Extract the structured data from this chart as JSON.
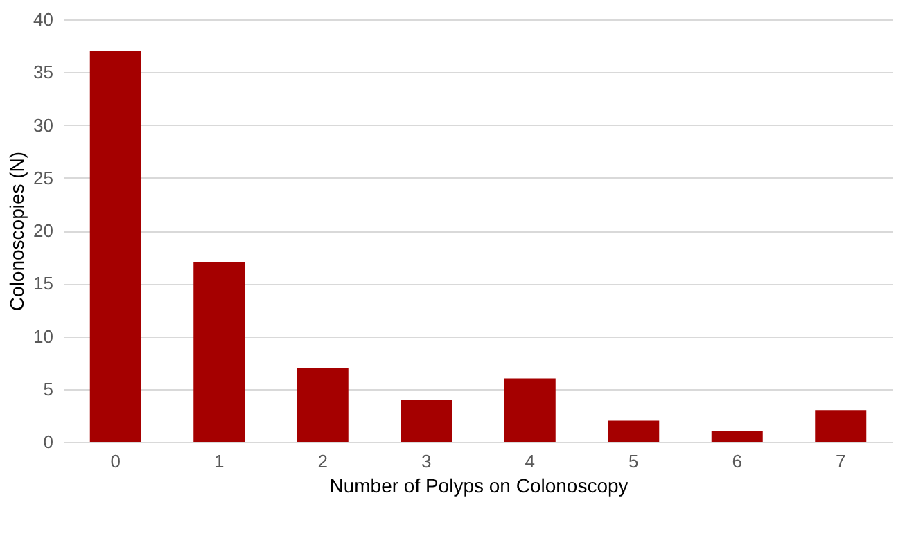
{
  "chart_data": {
    "type": "bar",
    "xlabel": "Number of Polyps on Colonoscopy",
    "ylabel": "Colonoscopies (N)",
    "categories": [
      "0",
      "1",
      "2",
      "3",
      "4",
      "5",
      "6",
      "7"
    ],
    "values": [
      37,
      17,
      7,
      4,
      6,
      2,
      1,
      3
    ],
    "color": "#a50000",
    "ylim": [
      0,
      40
    ],
    "yticks": [
      0,
      5,
      10,
      15,
      20,
      25,
      30,
      35,
      40
    ],
    "grid": "y"
  }
}
